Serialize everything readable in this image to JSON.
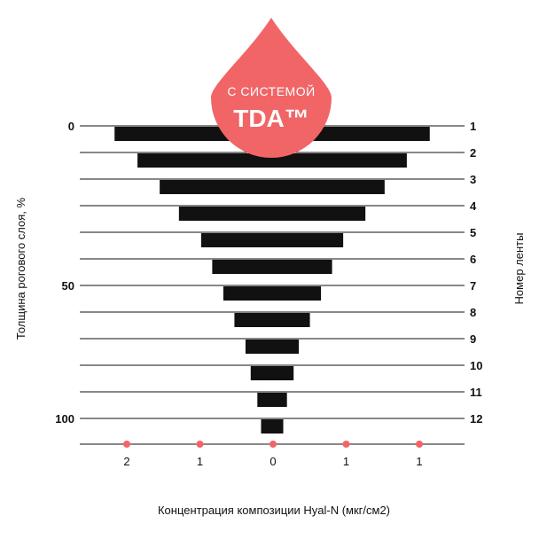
{
  "badge": {
    "line1": "С СИСТЕМОЙ",
    "line2": "TDA™",
    "color": "#f16567"
  },
  "chart_data": {
    "type": "bar",
    "orientation": "horizontal-centered",
    "ylabel": "Толщина рогового слоя, %",
    "y2label": "Номер ленты",
    "xlabel": "Концентрация композиции Hyal-N (мкг/см2)",
    "y_ticks": [
      {
        "value": 0,
        "label": "0",
        "row": 1
      },
      {
        "value": 50,
        "label": "50",
        "row": 7
      },
      {
        "value": 100,
        "label": "100",
        "row": 12
      }
    ],
    "categories": [
      "1",
      "2",
      "3",
      "4",
      "5",
      "6",
      "7",
      "8",
      "9",
      "10",
      "11",
      "12"
    ],
    "values": [
      2.13,
      1.82,
      1.52,
      1.26,
      0.96,
      0.81,
      0.66,
      0.51,
      0.36,
      0.29,
      0.2,
      0.15
    ],
    "x_ticks": [
      "2",
      "1",
      "0",
      "1",
      "1"
    ],
    "xlim": [
      -2.6,
      2.6
    ],
    "bar_color": "#111111",
    "marker_color": "#f16567",
    "grid": true
  }
}
